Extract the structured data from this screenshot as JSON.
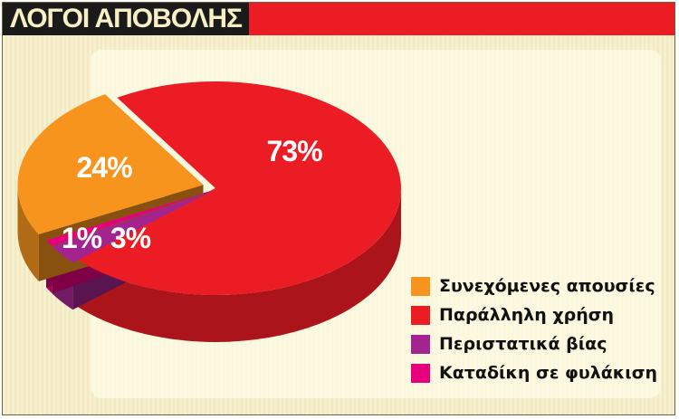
{
  "title": "ΛΟΓΟΙ ΑΠΟΒΟΛΗΣ",
  "chart_data": {
    "type": "pie",
    "style": "3d",
    "title": "ΛΟΓΟΙ ΑΠΟΒΟΛΗΣ",
    "legend_position": "bottom-right",
    "slices": [
      {
        "label": "Παράλληλη χρήση",
        "value": 73,
        "display": "73%",
        "color": "#ec1c24"
      },
      {
        "label": "Περιστατικά βίας",
        "value": 3,
        "display": "3%",
        "color": "#a3248f"
      },
      {
        "label": "Καταδίκη σε φυλάκιση",
        "value": 1,
        "display": "1%",
        "color": "#e6007e"
      },
      {
        "label": "Συνεχόμενες απουσίες",
        "value": 24,
        "display": "24%",
        "color": "#f7941d"
      }
    ],
    "legend_order": [
      3,
      0,
      1,
      2
    ]
  }
}
